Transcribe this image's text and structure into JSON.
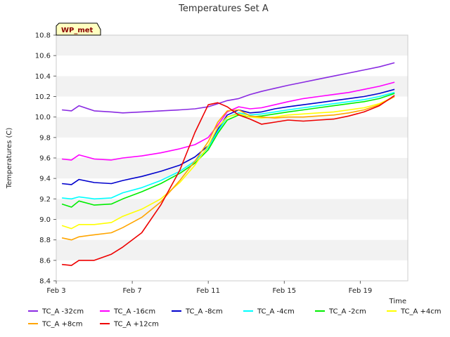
{
  "chart_data": {
    "type": "line",
    "title": "Temperatures Set A",
    "xlabel": "Time",
    "ylabel": "Temperatures (C)",
    "badge": "WP_met",
    "ylim": [
      8.4,
      10.8
    ],
    "xlim": [
      3,
      21.5
    ],
    "y_ticks": [
      8.4,
      8.6,
      8.8,
      9.0,
      9.2,
      9.4,
      9.6,
      9.8,
      10.0,
      10.2,
      10.4,
      10.6,
      10.8
    ],
    "x_ticks": [
      {
        "value": 3,
        "label": "Feb 3"
      },
      {
        "value": 7,
        "label": "Feb 7"
      },
      {
        "value": 11,
        "label": "Feb 11"
      },
      {
        "value": 15,
        "label": "Feb 15"
      },
      {
        "value": 19,
        "label": "Feb 19"
      }
    ],
    "grid": "horizontal bands",
    "legend_position": "bottom",
    "x": [
      3.3,
      3.8,
      4.2,
      5.0,
      5.9,
      6.5,
      7.5,
      8.5,
      9.5,
      10.3,
      11.0,
      11.5,
      12.0,
      12.6,
      13.2,
      13.8,
      14.5,
      15.2,
      16.0,
      16.8,
      17.6,
      18.4,
      19.2,
      20.0,
      20.8
    ],
    "series": [
      {
        "name": "TC_A -32cm",
        "color": "#8a2be2",
        "values": [
          10.07,
          10.06,
          10.11,
          10.06,
          10.05,
          10.04,
          10.05,
          10.06,
          10.07,
          10.08,
          10.1,
          10.13,
          10.16,
          10.18,
          10.22,
          10.25,
          10.28,
          10.31,
          10.34,
          10.37,
          10.4,
          10.43,
          10.46,
          10.49,
          10.53
        ]
      },
      {
        "name": "TC_A -16cm",
        "color": "#ff00ff",
        "values": [
          9.59,
          9.58,
          9.63,
          9.59,
          9.58,
          9.6,
          9.62,
          9.65,
          9.69,
          9.73,
          9.8,
          9.92,
          10.05,
          10.1,
          10.08,
          10.09,
          10.12,
          10.15,
          10.18,
          10.2,
          10.22,
          10.24,
          10.27,
          10.3,
          10.34
        ]
      },
      {
        "name": "TC_A -8cm",
        "color": "#0000cd",
        "values": [
          9.35,
          9.34,
          9.39,
          9.36,
          9.35,
          9.38,
          9.42,
          9.47,
          9.53,
          9.61,
          9.72,
          9.88,
          10.02,
          10.07,
          10.04,
          10.05,
          10.08,
          10.1,
          10.12,
          10.14,
          10.16,
          10.18,
          10.2,
          10.23,
          10.27
        ]
      },
      {
        "name": "TC_A -4cm",
        "color": "#00ffff",
        "values": [
          9.21,
          9.2,
          9.22,
          9.2,
          9.21,
          9.26,
          9.31,
          9.38,
          9.47,
          9.57,
          9.7,
          9.86,
          10.0,
          10.04,
          10.02,
          10.03,
          10.05,
          10.07,
          10.09,
          10.11,
          10.13,
          10.15,
          10.17,
          10.2,
          10.24
        ]
      },
      {
        "name": "TC_A -2cm",
        "color": "#00ee00",
        "values": [
          9.15,
          9.12,
          9.18,
          9.14,
          9.15,
          9.2,
          9.27,
          9.35,
          9.45,
          9.55,
          9.68,
          9.84,
          9.97,
          10.02,
          10.0,
          10.01,
          10.03,
          10.05,
          10.07,
          10.09,
          10.11,
          10.13,
          10.15,
          10.18,
          10.23
        ]
      },
      {
        "name": "TC_A +4cm",
        "color": "#ffff00",
        "values": [
          8.94,
          8.91,
          8.95,
          8.95,
          8.97,
          9.03,
          9.1,
          9.2,
          9.36,
          9.53,
          9.72,
          9.9,
          10.0,
          10.03,
          10.0,
          9.99,
          10.0,
          10.02,
          10.03,
          10.04,
          10.05,
          10.07,
          10.09,
          10.13,
          10.2
        ]
      },
      {
        "name": "TC_A +8cm",
        "color": "#ffa500",
        "values": [
          8.82,
          8.8,
          8.83,
          8.85,
          8.87,
          8.92,
          9.02,
          9.17,
          9.38,
          9.57,
          9.76,
          9.95,
          10.06,
          10.07,
          10.01,
          10.0,
          9.99,
          10.0,
          10.0,
          10.01,
          10.02,
          10.04,
          10.07,
          10.12,
          10.2
        ]
      },
      {
        "name": "TC_A +12cm",
        "color": "#ee0000",
        "values": [
          8.56,
          8.55,
          8.6,
          8.6,
          8.66,
          8.73,
          8.87,
          9.14,
          9.48,
          9.85,
          10.12,
          10.14,
          10.1,
          10.02,
          9.98,
          9.93,
          9.95,
          9.97,
          9.96,
          9.97,
          9.98,
          10.01,
          10.05,
          10.11,
          10.21
        ]
      }
    ]
  }
}
